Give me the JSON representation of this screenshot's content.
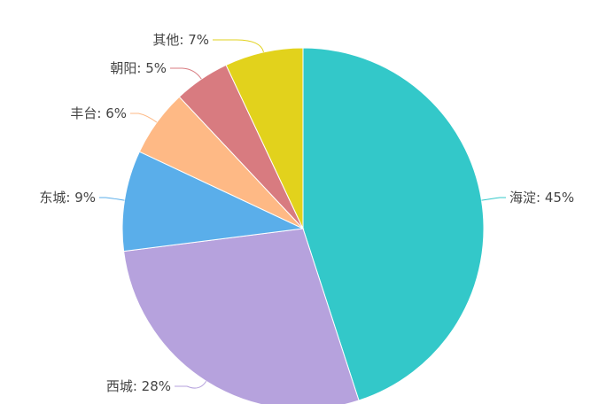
{
  "chart_data": {
    "type": "pie",
    "label_format": "{name}: {value}%",
    "slices": [
      {
        "name": "海淀",
        "value": 45,
        "color": "#33c8c9"
      },
      {
        "name": "西城",
        "value": 28,
        "color": "#b6a2dd"
      },
      {
        "name": "东城",
        "value": 9,
        "color": "#5aaeea"
      },
      {
        "name": "丰台",
        "value": 6,
        "color": "#feb985"
      },
      {
        "name": "朝阳",
        "value": 5,
        "color": "#d87b80"
      },
      {
        "name": "其他",
        "value": 7,
        "color": "#e2d21c"
      }
    ],
    "start": "top",
    "direction": "clockwise"
  }
}
